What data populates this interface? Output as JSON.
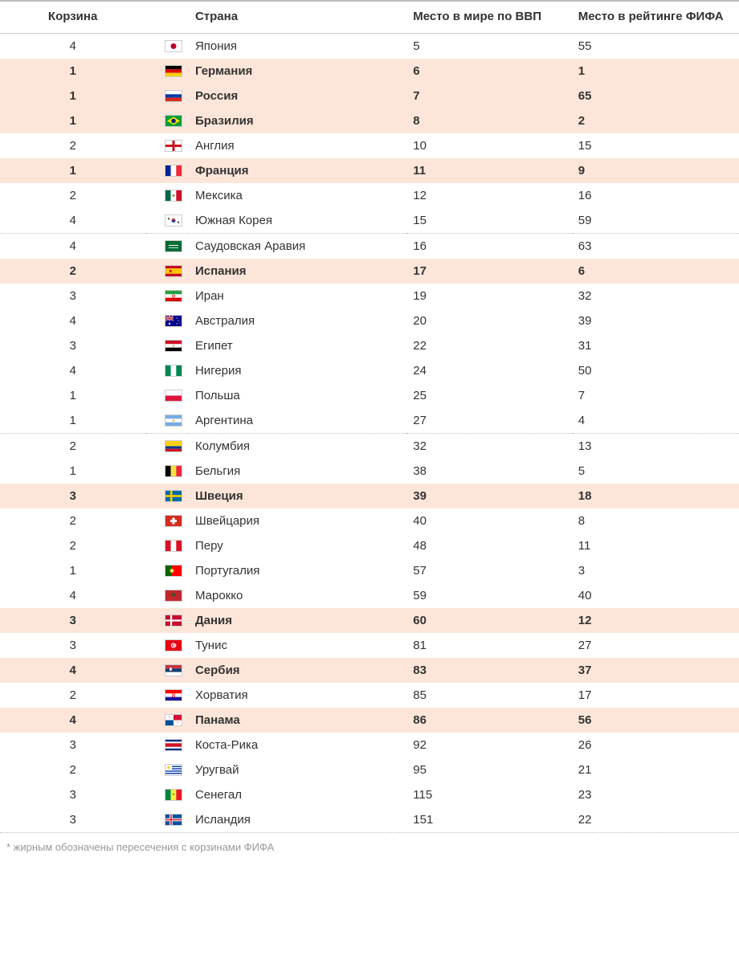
{
  "columns": {
    "pot": "Корзина",
    "country": "Страна",
    "gdp": "Место\nв мире по ВВП",
    "fifa": "Место\nв рейтинге ФИФА"
  },
  "footnote": "* жирным обозначены пересечения с корзинами ФИФА",
  "highlight_bg": "#fde6d9",
  "separators_after": [
    8,
    16
  ],
  "rows": [
    {
      "pot": 4,
      "country": "Япония",
      "gdp": 5,
      "fifa": 55,
      "hl": false,
      "flag": "jp"
    },
    {
      "pot": 1,
      "country": "Германия",
      "gdp": 6,
      "fifa": 1,
      "hl": true,
      "flag": "de"
    },
    {
      "pot": 1,
      "country": "Россия",
      "gdp": 7,
      "fifa": 65,
      "hl": true,
      "flag": "ru"
    },
    {
      "pot": 1,
      "country": "Бразилия",
      "gdp": 8,
      "fifa": 2,
      "hl": true,
      "flag": "br"
    },
    {
      "pot": 2,
      "country": "Англия",
      "gdp": 10,
      "fifa": 15,
      "hl": false,
      "flag": "en"
    },
    {
      "pot": 1,
      "country": "Франция",
      "gdp": 11,
      "fifa": 9,
      "hl": true,
      "flag": "fr"
    },
    {
      "pot": 2,
      "country": "Мексика",
      "gdp": 12,
      "fifa": 16,
      "hl": false,
      "flag": "mx"
    },
    {
      "pot": 4,
      "country": "Южная Корея",
      "gdp": 15,
      "fifa": 59,
      "hl": false,
      "flag": "kr"
    },
    {
      "pot": 4,
      "country": "Саудовская Аравия",
      "gdp": 16,
      "fifa": 63,
      "hl": false,
      "flag": "sa"
    },
    {
      "pot": 2,
      "country": "Испания",
      "gdp": 17,
      "fifa": 6,
      "hl": true,
      "flag": "es"
    },
    {
      "pot": 3,
      "country": "Иран",
      "gdp": 19,
      "fifa": 32,
      "hl": false,
      "flag": "ir"
    },
    {
      "pot": 4,
      "country": "Австралия",
      "gdp": 20,
      "fifa": 39,
      "hl": false,
      "flag": "au"
    },
    {
      "pot": 3,
      "country": "Египет",
      "gdp": 22,
      "fifa": 31,
      "hl": false,
      "flag": "eg"
    },
    {
      "pot": 4,
      "country": "Нигерия",
      "gdp": 24,
      "fifa": 50,
      "hl": false,
      "flag": "ng"
    },
    {
      "pot": 1,
      "country": "Польша",
      "gdp": 25,
      "fifa": 7,
      "hl": false,
      "flag": "pl"
    },
    {
      "pot": 1,
      "country": "Аргентина",
      "gdp": 27,
      "fifa": 4,
      "hl": false,
      "flag": "ar"
    },
    {
      "pot": 2,
      "country": "Колумбия",
      "gdp": 32,
      "fifa": 13,
      "hl": false,
      "flag": "co"
    },
    {
      "pot": 1,
      "country": "Бельгия",
      "gdp": 38,
      "fifa": 5,
      "hl": false,
      "flag": "be"
    },
    {
      "pot": 3,
      "country": "Швеция",
      "gdp": 39,
      "fifa": 18,
      "hl": true,
      "flag": "se"
    },
    {
      "pot": 2,
      "country": "Швейцария",
      "gdp": 40,
      "fifa": 8,
      "hl": false,
      "flag": "ch"
    },
    {
      "pot": 2,
      "country": "Перу",
      "gdp": 48,
      "fifa": 11,
      "hl": false,
      "flag": "pe"
    },
    {
      "pot": 1,
      "country": "Португалия",
      "gdp": 57,
      "fifa": 3,
      "hl": false,
      "flag": "pt"
    },
    {
      "pot": 4,
      "country": "Марокко",
      "gdp": 59,
      "fifa": 40,
      "hl": false,
      "flag": "ma"
    },
    {
      "pot": 3,
      "country": "Дания",
      "gdp": 60,
      "fifa": 12,
      "hl": true,
      "flag": "dk"
    },
    {
      "pot": 3,
      "country": "Тунис",
      "gdp": 81,
      "fifa": 27,
      "hl": false,
      "flag": "tn"
    },
    {
      "pot": 4,
      "country": "Сербия",
      "gdp": 83,
      "fifa": 37,
      "hl": true,
      "flag": "rs"
    },
    {
      "pot": 2,
      "country": "Хорватия",
      "gdp": 85,
      "fifa": 17,
      "hl": false,
      "flag": "hr"
    },
    {
      "pot": 4,
      "country": "Панама",
      "gdp": 86,
      "fifa": 56,
      "hl": true,
      "flag": "pa"
    },
    {
      "pot": 3,
      "country": "Коста-Рика",
      "gdp": 92,
      "fifa": 26,
      "hl": false,
      "flag": "cr"
    },
    {
      "pot": 2,
      "country": "Уругвай",
      "gdp": 95,
      "fifa": 21,
      "hl": false,
      "flag": "uy"
    },
    {
      "pot": 3,
      "country": "Сенегал",
      "gdp": 115,
      "fifa": 23,
      "hl": false,
      "flag": "sn"
    },
    {
      "pot": 3,
      "country": "Исландия",
      "gdp": 151,
      "fifa": 22,
      "hl": false,
      "flag": "is"
    }
  ]
}
